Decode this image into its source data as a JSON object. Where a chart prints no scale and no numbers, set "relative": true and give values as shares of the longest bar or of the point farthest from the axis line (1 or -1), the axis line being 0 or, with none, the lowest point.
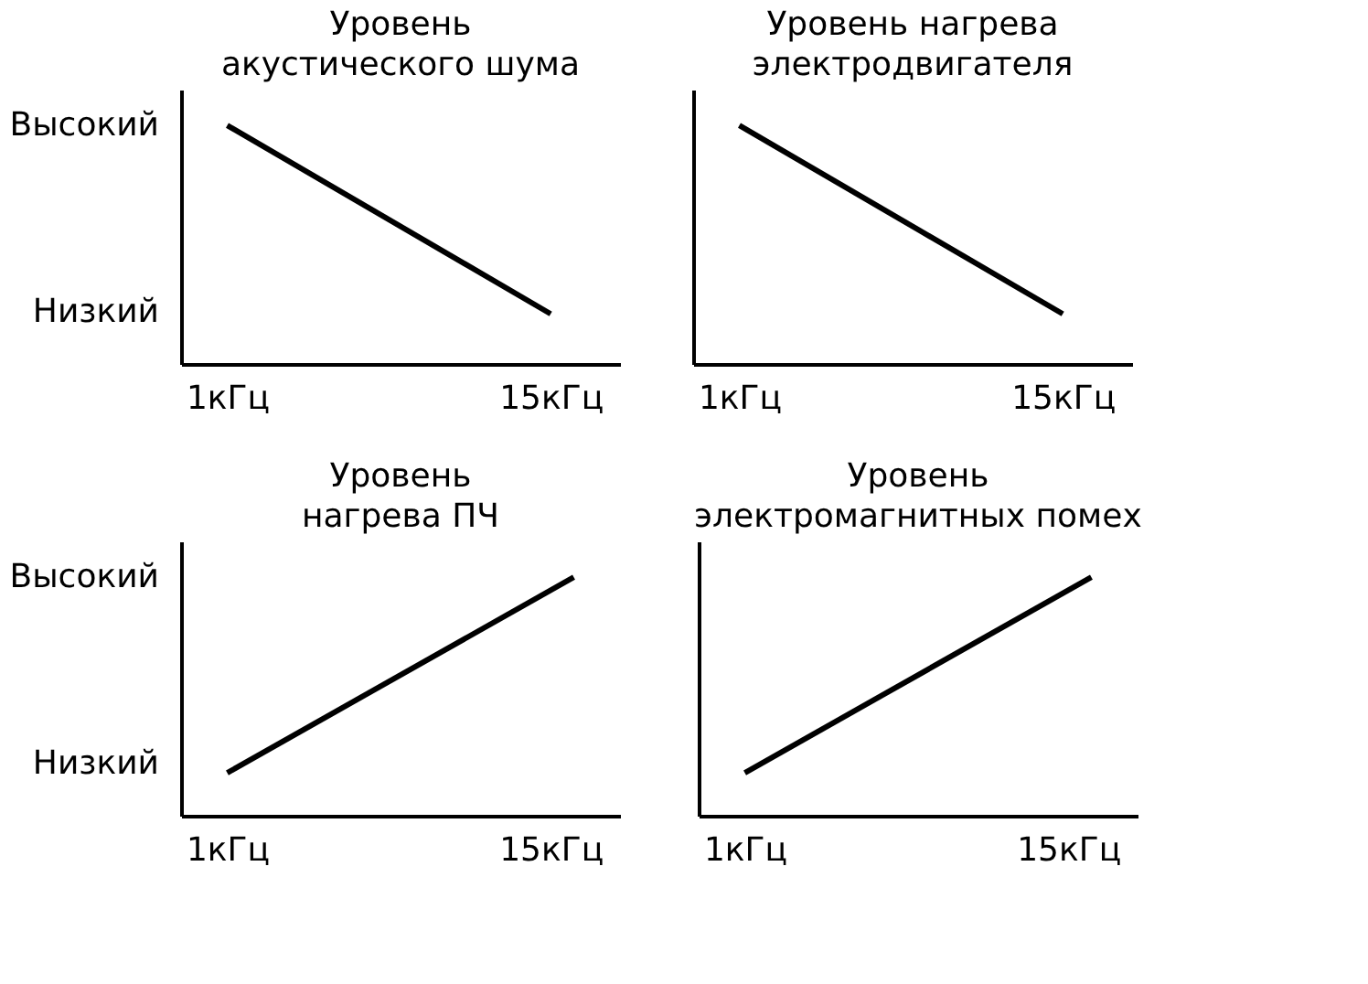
{
  "chart_data": [
    {
      "type": "line",
      "title": "Уровень\nакустического шума",
      "relative": true,
      "x": [
        1,
        15
      ],
      "series": [
        {
          "color": "#000000",
          "values": [
            1,
            0.21
          ]
        }
      ],
      "xlim": [
        -1,
        18
      ],
      "xticks": [
        {
          "value": 1,
          "label": "1кГц"
        },
        {
          "value": 15,
          "label": "15кГц"
        }
      ],
      "annotations": [
        "Высокий",
        "Низкий"
      ],
      "tick_labels": "x"
    },
    {
      "type": "line",
      "title": "Уровень нагрева\nэлектродвигателя",
      "relative": true,
      "x": [
        1,
        15
      ],
      "series": [
        {
          "color": "#000000",
          "values": [
            1,
            0.21
          ]
        }
      ],
      "xlim": [
        -1,
        18
      ],
      "xticks": [
        {
          "value": 1,
          "label": "1кГц"
        },
        {
          "value": 15,
          "label": "15кГц"
        }
      ],
      "tick_labels": "x"
    },
    {
      "type": "line",
      "title": "Уровень\nнагрева ПЧ",
      "relative": true,
      "x": [
        1,
        16
      ],
      "series": [
        {
          "color": "#000000",
          "values": [
            0.18,
            1
          ]
        }
      ],
      "xlim": [
        -1,
        18
      ],
      "xticks": [
        {
          "value": 1,
          "label": "1кГц"
        },
        {
          "value": 15,
          "label": "15кГц"
        }
      ],
      "annotations": [
        "Высокий",
        "Низкий"
      ],
      "tick_labels": "x"
    },
    {
      "type": "line",
      "title": "Уровень\nэлектромагнитных помех",
      "relative": true,
      "x": [
        1,
        16
      ],
      "series": [
        {
          "color": "#000000",
          "values": [
            0.18,
            1
          ]
        }
      ],
      "xlim": [
        -1,
        18
      ],
      "xticks": [
        {
          "value": 1,
          "label": "1кГц"
        },
        {
          "value": 15,
          "label": "15кГц"
        }
      ],
      "tick_labels": "x"
    }
  ]
}
